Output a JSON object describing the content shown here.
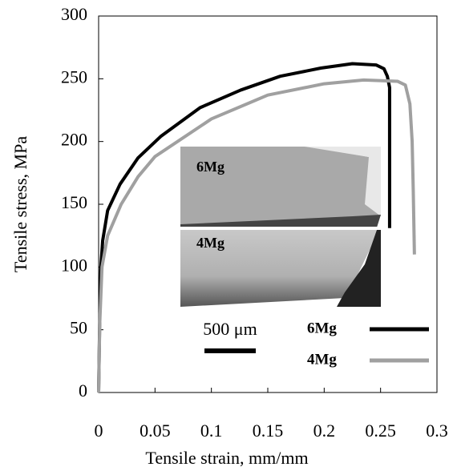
{
  "chart_data": {
    "type": "line",
    "xlabel": "Tensile strain, mm/mm",
    "ylabel": "Tensile stress, MPa",
    "xlim": [
      0,
      0.3
    ],
    "xticks": [
      0,
      0.05,
      0.1,
      0.15,
      0.2,
      0.25,
      0.3
    ],
    "ylim": [
      0,
      300
    ],
    "yticks": [
      0,
      50,
      100,
      150,
      200,
      250,
      300
    ],
    "series": [
      {
        "name": "6Mg",
        "color": "#000000",
        "x": [
          0,
          0.001,
          0.002,
          0.0036,
          0.008,
          0.019,
          0.035,
          0.055,
          0.09,
          0.126,
          0.161,
          0.197,
          0.225,
          0.246,
          0.253,
          0.256,
          0.258,
          0.258
        ],
        "values": [
          0,
          60,
          100,
          121,
          145,
          166,
          187,
          204,
          227,
          241,
          252,
          258.5,
          262,
          261,
          258,
          252,
          243,
          131
        ]
      },
      {
        "name": "4Mg",
        "color": "#a0a0a0",
        "x": [
          0,
          0.001,
          0.003,
          0.008,
          0.02,
          0.035,
          0.05,
          0.1,
          0.15,
          0.2,
          0.235,
          0.265,
          0.272,
          0.276,
          0.278,
          0.279,
          0.28
        ],
        "values": [
          0,
          55,
          100,
          125,
          150,
          172,
          188,
          218,
          237,
          246,
          249,
          248,
          245,
          230,
          200,
          160,
          110
        ]
      }
    ],
    "legend": "lower right",
    "annotations": [
      "6Mg",
      "4Mg",
      "500 μm"
    ]
  }
}
